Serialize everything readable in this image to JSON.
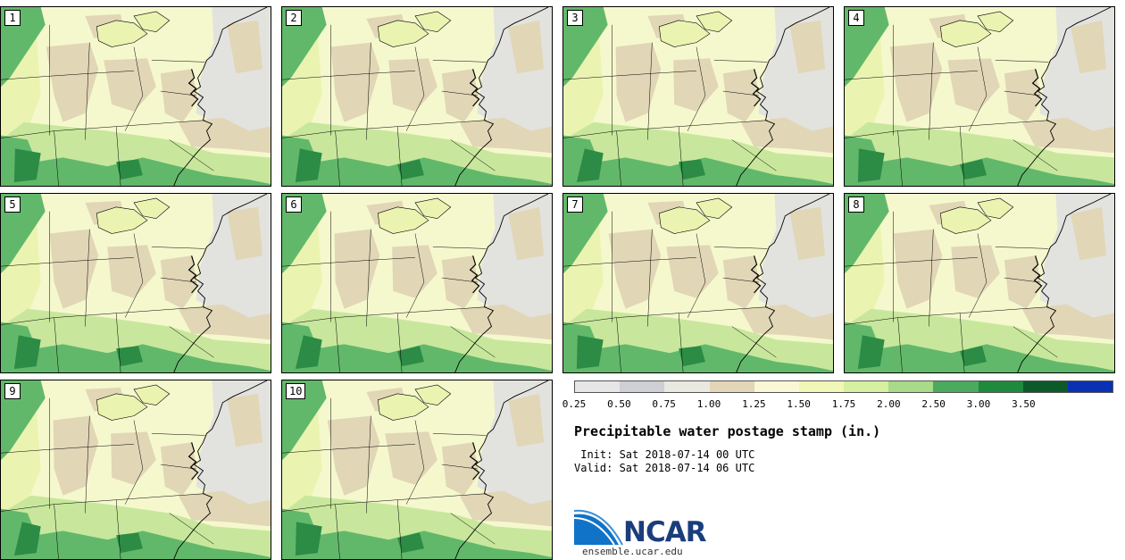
{
  "title": "Precipitable water postage stamp (in.)",
  "init": " Init: Sat 2018-07-14 00 UTC",
  "valid": "Valid: Sat 2018-07-14 06 UTC",
  "logo_text": "NCAR",
  "url": "ensemble.ucar.edu",
  "stamps": [
    "1",
    "2",
    "3",
    "4",
    "5",
    "6",
    "7",
    "8",
    "9",
    "10"
  ],
  "colorbar": {
    "ticks": [
      "0.25",
      "0.50",
      "0.75",
      "1.00",
      "1.25",
      "1.50",
      "1.75",
      "2.00",
      "2.50",
      "3.00",
      "3.50"
    ],
    "colors": [
      "#e6e6e6",
      "#cfcfd6",
      "#e9e9e0",
      "#e3d6b8",
      "#faf8d4",
      "#f1f7b6",
      "#d6efa1",
      "#a9da89",
      "#4aab5e",
      "#1f8a3c",
      "#0c5a2a",
      "#0a31b3"
    ]
  },
  "map_colors": {
    "gray": "#e2e2df",
    "tan": "#e1d6b6",
    "cream": "#f5f8cd",
    "light_yellow_green": "#eaf4b0",
    "light_green": "#c8e79c",
    "green": "#62b86a",
    "dark_green": "#2c8b44"
  }
}
